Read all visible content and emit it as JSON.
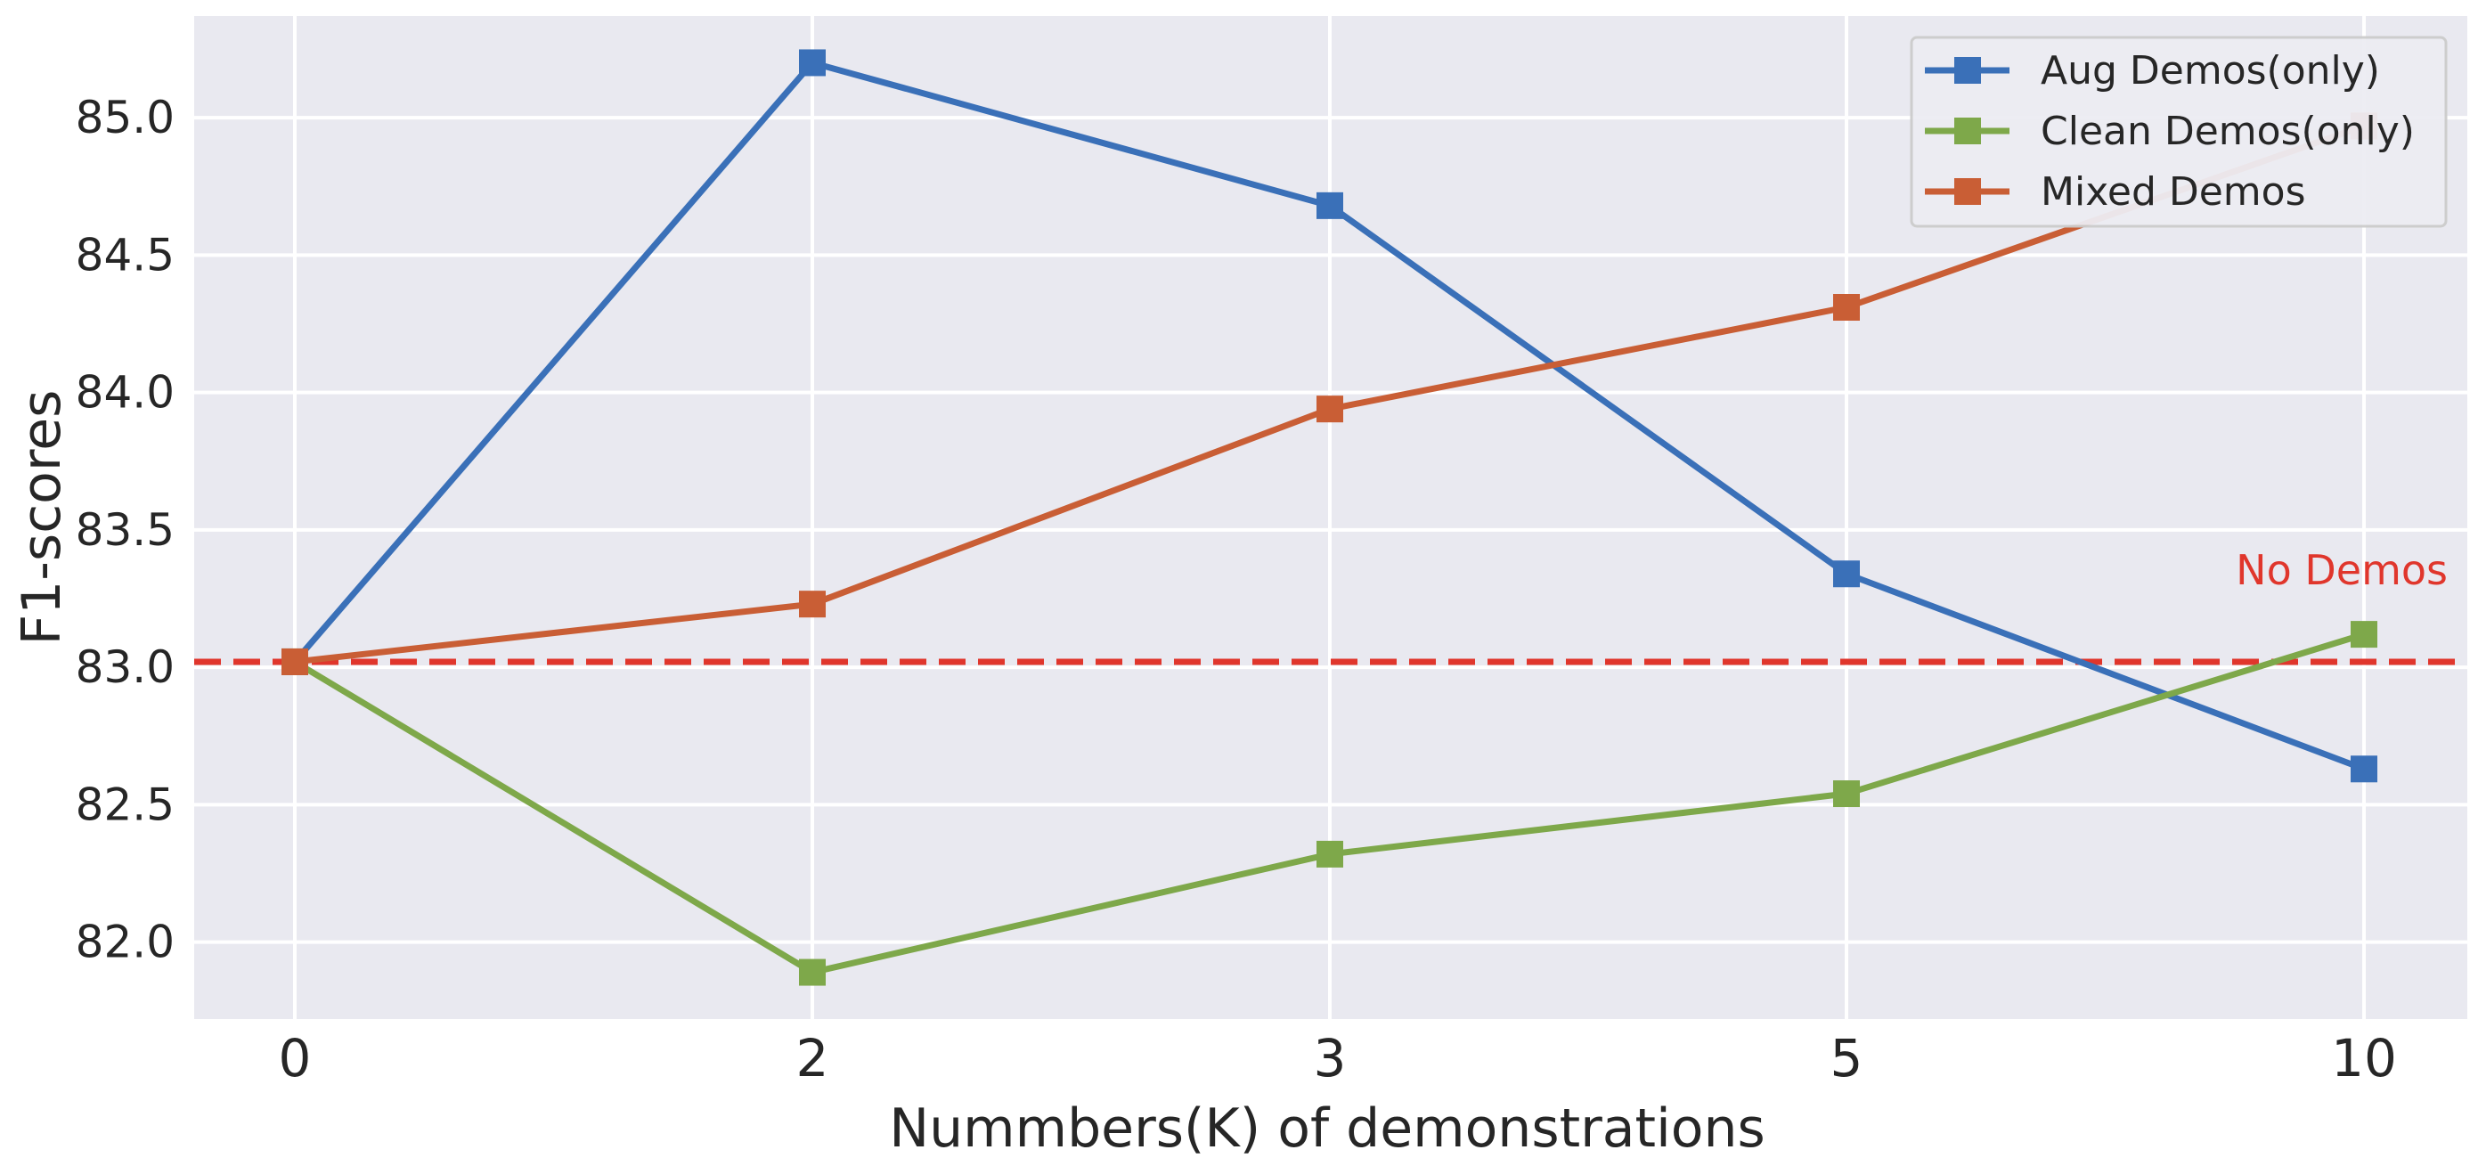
{
  "chart_data": {
    "type": "line",
    "xlabel": "Nummbers(K) of demonstrations",
    "ylabel": "F1-scores",
    "categories": [
      "0",
      "2",
      "3",
      "5",
      "10"
    ],
    "ylim": [
      81.72,
      85.37
    ],
    "yticks": [
      "82.0",
      "82.5",
      "83.0",
      "83.5",
      "84.0",
      "84.5",
      "85.0"
    ],
    "ytick_values": [
      82.0,
      82.5,
      83.0,
      83.5,
      84.0,
      84.5,
      85.0
    ],
    "grid": true,
    "legend_position": "top-right",
    "series": [
      {
        "name": "Aug Demos(only)",
        "color": "#3a70b8",
        "marker": "square",
        "values": [
          83.02,
          85.2,
          84.68,
          83.34,
          82.63
        ]
      },
      {
        "name": "Clean Demos(only)",
        "color": "#7ea84a",
        "marker": "square",
        "values": [
          83.02,
          81.89,
          82.32,
          82.54,
          83.12
        ]
      },
      {
        "name": "Mixed Demos",
        "color": "#c95e35",
        "marker": "square",
        "values": [
          83.02,
          83.23,
          83.94,
          84.31,
          84.97
        ]
      }
    ],
    "reference_line": {
      "label": "No Demos",
      "value": 83.02,
      "color": "#e0362c",
      "style": "dashed"
    }
  }
}
